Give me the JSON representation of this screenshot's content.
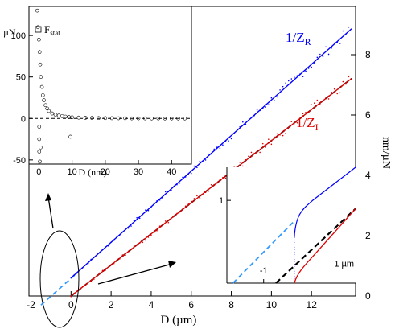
{
  "chart_data": [
    {
      "type": "scatter",
      "role": "main",
      "xlabel": "D (µm)",
      "ylabel": "nm/µN",
      "xlim": [
        -2.1,
        14.2
      ],
      "ylim": [
        0,
        9.6
      ],
      "x_ticks": [
        -2,
        0,
        2,
        4,
        6,
        8,
        10,
        12
      ],
      "y_ticks": [
        0,
        2,
        4,
        6,
        8
      ],
      "series": [
        {
          "name": "1/Z_R",
          "color": "#0000ff",
          "x": [
            0,
            2,
            4,
            6,
            8,
            10,
            12,
            14
          ],
          "y": [
            0.6,
            1.78,
            2.96,
            4.14,
            5.32,
            6.5,
            7.68,
            8.86
          ]
        },
        {
          "name": "1/Z_I",
          "color": "#e00000",
          "x": [
            0,
            2,
            4,
            6,
            8,
            10,
            12,
            14
          ],
          "y": [
            0.0,
            1.03,
            2.06,
            3.09,
            4.12,
            5.15,
            6.18,
            7.21
          ]
        }
      ],
      "fits": [
        {
          "color": "#3399ff",
          "style": "dashed",
          "x": [
            -1.5,
            0.2
          ],
          "y": [
            -0.3,
            0.7
          ]
        },
        {
          "color": "#000000",
          "style": "dashed",
          "x": [
            0,
            14
          ],
          "y": [
            0.0,
            7.21
          ]
        }
      ],
      "labels": {
        "blue": "1/Z",
        "blue_sub": "R",
        "red": "1/Z",
        "red_sub": "I"
      }
    },
    {
      "type": "scatter",
      "role": "inset-left",
      "xlabel": "D (nm)",
      "ylabel": "µN",
      "xlim": [
        -3,
        46
      ],
      "ylim": [
        -55,
        135
      ],
      "x_ticks": [
        0,
        10,
        20,
        30,
        40
      ],
      "y_ticks": [
        -50,
        0,
        50,
        100
      ],
      "legend": "F",
      "legend_sub": "stat",
      "series": [
        {
          "name": "F_stat",
          "x": [
            -0.5,
            -0.3,
            0,
            0.2,
            0.4,
            0.6,
            0.9,
            1.2,
            1.5,
            2,
            2.5,
            3,
            4,
            5,
            6,
            7,
            8,
            9,
            10,
            12,
            14,
            16,
            18,
            20,
            22,
            24,
            26,
            28,
            30,
            32,
            34,
            36,
            38,
            40,
            42,
            44,
            9.5,
            0.1,
            0.1,
            0.1,
            0.3,
            0.5
          ],
          "y": [
            130,
            110,
            95,
            80,
            65,
            50,
            38,
            28,
            22,
            16,
            12,
            9,
            6,
            4.5,
            3.5,
            2.8,
            2.2,
            1.8,
            1.4,
            1.0,
            0.8,
            0.6,
            0.5,
            0.4,
            0.3,
            0.2,
            0.2,
            0.1,
            0.1,
            0.1,
            0,
            0,
            0,
            0,
            0,
            0,
            -22,
            -10,
            -25,
            -40,
            -52,
            -35
          ]
        }
      ]
    },
    {
      "type": "line",
      "role": "inset-right",
      "xlim": [
        -2.2,
        2.0
      ],
      "ylim": [
        0,
        1.4
      ],
      "x_ticks": [
        -1
      ],
      "y_ticks": [
        1
      ],
      "annotation": "1 µm"
    }
  ]
}
